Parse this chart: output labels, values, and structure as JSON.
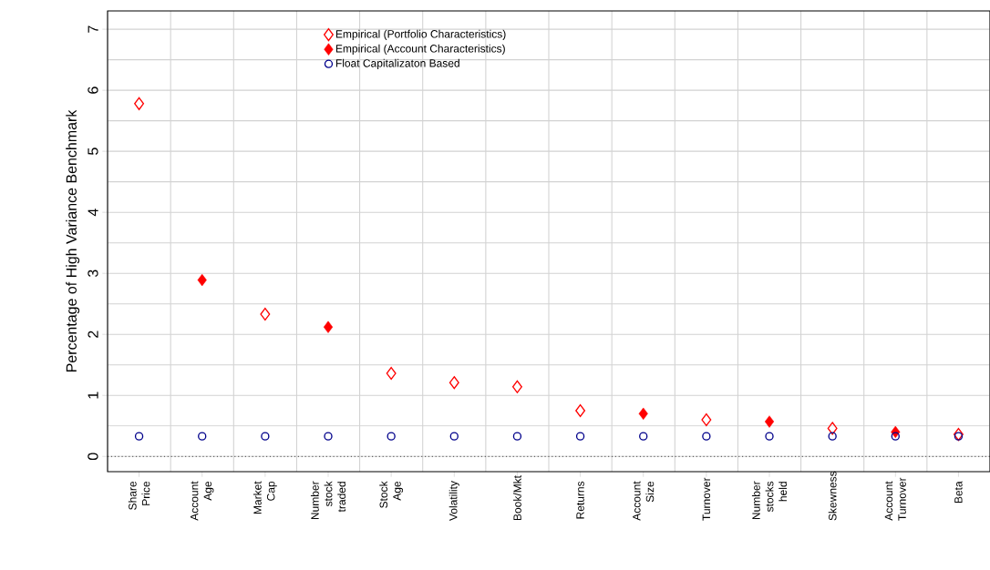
{
  "chart_data": {
    "type": "scatter",
    "ylabel": "Percentage of High Variance Benchmark",
    "categories": [
      "Share Price",
      "Account Age",
      "Market Cap",
      "Number stock traded",
      "Stock Age",
      "Volatility",
      "Book/Mkt",
      "Returns",
      "Account Size",
      "Turnover",
      "Number stocks held",
      "Skewness",
      "Account Turnover",
      "Beta"
    ],
    "series": [
      {
        "name": "Empirical (Portfolio Characteristics)",
        "color": "#ff0000",
        "marker": "diamond",
        "values": [
          5.78,
          null,
          2.33,
          null,
          1.36,
          1.21,
          1.14,
          0.75,
          null,
          0.6,
          null,
          0.46,
          null,
          0.36
        ]
      },
      {
        "name": "Empirical (Account Characteristics)",
        "color": "#ff0000",
        "marker": "diamond",
        "values": [
          null,
          2.89,
          null,
          2.12,
          null,
          null,
          null,
          null,
          0.7,
          null,
          0.57,
          null,
          0.4,
          null
        ]
      },
      {
        "name": "Float Capitalizaton Based",
        "color": "#00008b",
        "marker": "circle",
        "values": [
          0.33,
          0.33,
          0.33,
          0.33,
          0.33,
          0.33,
          0.33,
          0.33,
          0.33,
          0.33,
          0.33,
          0.33,
          0.33,
          0.33
        ]
      }
    ],
    "ylim": [
      -0.25,
      7.3
    ],
    "yticks": [
      0,
      1,
      2,
      3,
      4,
      5,
      6,
      7
    ],
    "ref_lines": [
      {
        "axis": "y",
        "value": 0,
        "line_style": "dotted",
        "color": "#000000"
      }
    ],
    "grid": true,
    "legend": "top"
  }
}
